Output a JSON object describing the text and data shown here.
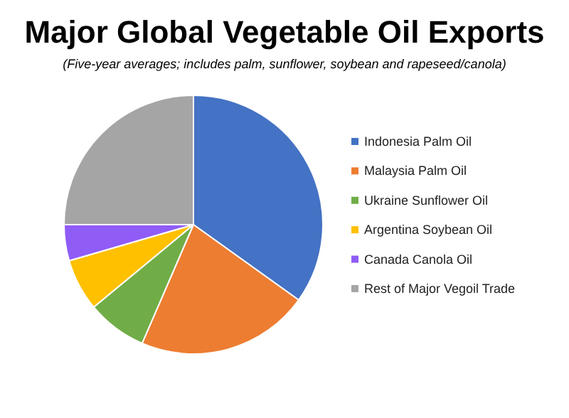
{
  "chart_data": {
    "type": "pie",
    "title": "Major Global Vegetable Oil Exports",
    "subtitle": "(Five-year averages; includes palm, sunflower, soybean and rapeseed/canola)",
    "categories": [
      "Indonesia Palm Oil",
      "Malaysia Palm Oil",
      "Ukraine Sunflower Oil",
      "Argentina Soybean Oil",
      "Canada Canola Oil",
      "Rest of Major Vegoil Trade"
    ],
    "values": [
      34.9,
      21.6,
      7.5,
      6.5,
      4.5,
      25
    ],
    "colors": [
      "#4472c4",
      "#ed7d31",
      "#70ad47",
      "#ffc000",
      "#8f5cf6",
      "#a5a5a5"
    ],
    "legend": "right"
  }
}
